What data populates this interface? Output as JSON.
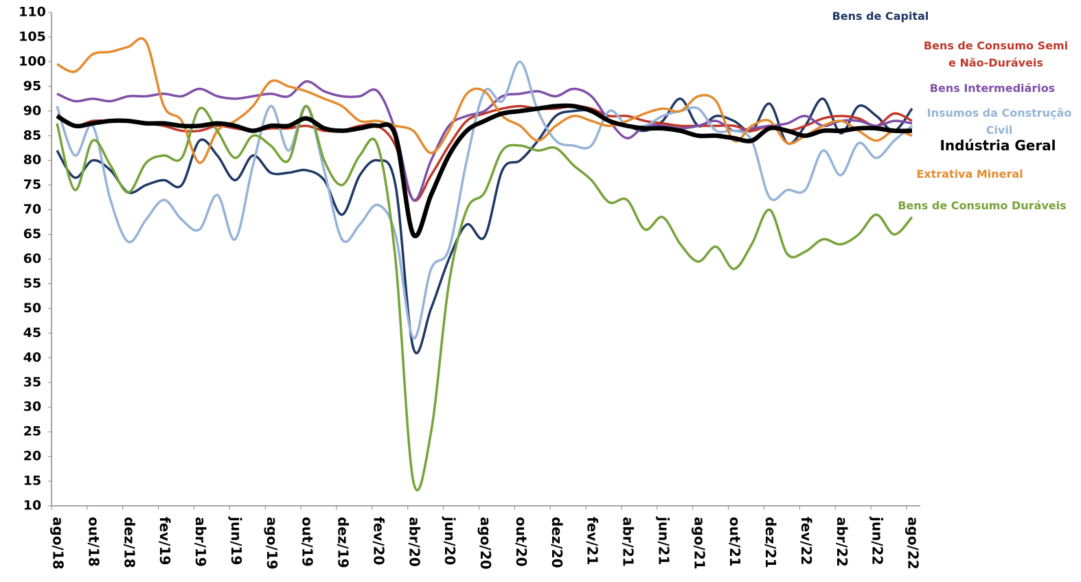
{
  "chart_data": {
    "type": "line",
    "categories": [
      "ago/18",
      null,
      "out/18",
      null,
      "dez/18",
      null,
      "fev/19",
      null,
      "abr/19",
      null,
      "jun/19",
      null,
      "ago/19",
      null,
      "out/19",
      null,
      "dez/19",
      null,
      "fev/20",
      null,
      "abr/20",
      null,
      "jun/20",
      null,
      "ago/20",
      null,
      "out/20",
      null,
      "dez/20",
      null,
      "fev/21",
      null,
      "abr/21",
      null,
      "jun/21",
      null,
      "ago/21",
      null,
      "out/21",
      null,
      "dez/21",
      null,
      "fev/22",
      null,
      "abr/22",
      null,
      "jun/22",
      null,
      "ago/22"
    ],
    "ylim": [
      10,
      110
    ],
    "yticks": [
      10,
      15,
      20,
      25,
      30,
      35,
      40,
      45,
      50,
      55,
      60,
      65,
      70,
      75,
      80,
      85,
      90,
      95,
      100,
      105,
      110
    ],
    "series": [
      {
        "name": "Bens de Capital",
        "color": "#1f3864",
        "values": [
          82,
          76.5,
          80,
          78,
          73.5,
          75,
          76,
          75,
          84,
          81,
          76,
          81,
          77.5,
          77.5,
          78,
          76,
          69,
          77,
          80,
          75,
          42,
          50,
          60,
          67,
          64.5,
          78,
          80,
          84,
          89,
          90,
          90,
          88,
          87,
          86,
          88,
          92.5,
          87,
          89,
          88,
          86,
          91.5,
          83.5,
          87,
          92.5,
          85.5,
          91,
          89,
          86,
          90.5
        ]
      },
      {
        "name": "Bens de Consumo Semi e Não-Duráveis",
        "color": "#c0392b",
        "values": [
          89,
          87,
          88,
          88,
          88,
          87.5,
          87,
          86,
          86,
          87,
          86.5,
          86,
          86.5,
          86.5,
          87,
          86,
          86,
          87,
          87,
          83,
          72,
          77,
          83,
          88,
          89.5,
          90.5,
          91,
          90.5,
          90.5,
          91,
          90.5,
          89,
          89,
          88,
          87.5,
          87,
          87,
          87,
          87,
          86,
          87,
          86,
          87,
          88.5,
          89,
          88.5,
          87,
          89.5,
          88
        ]
      },
      {
        "name": "Bens Intermediários",
        "color": "#7f4fa8",
        "values": [
          93.5,
          92,
          92.5,
          92,
          93,
          93,
          93.5,
          93,
          94.5,
          93,
          92.5,
          93,
          93.5,
          93,
          96,
          94,
          93,
          93,
          94,
          86,
          72,
          80,
          87,
          89,
          90,
          93,
          93.5,
          94,
          93,
          94.5,
          93,
          88,
          84.5,
          87,
          87,
          86.5,
          87,
          88,
          86,
          86.5,
          87,
          87.5,
          89,
          87,
          88,
          88,
          87,
          88,
          87.5
        ]
      },
      {
        "name": "Insumos da Construção Civil",
        "color": "#95b3d7",
        "values": [
          91,
          81,
          87,
          72,
          63.5,
          68,
          72,
          68,
          66,
          73,
          64,
          79,
          91,
          82,
          91,
          78,
          64,
          67,
          71,
          65,
          44,
          58,
          62,
          80,
          94,
          92,
          100,
          90,
          84,
          83,
          83,
          90,
          87,
          87,
          89,
          90,
          90.5,
          86,
          86,
          84,
          72.5,
          74,
          74,
          82,
          77,
          83.5,
          80.5,
          84,
          87
        ]
      },
      {
        "name": "Indústria Geral",
        "color": "#000000",
        "values": [
          89,
          87,
          87.5,
          88,
          88,
          87.5,
          87.5,
          87,
          87,
          87.5,
          87,
          86,
          87,
          87,
          88.5,
          86.5,
          86,
          86.5,
          87,
          85,
          65,
          73,
          81,
          86,
          88,
          89.5,
          90,
          90.5,
          91,
          91,
          90,
          88,
          87,
          86.5,
          86.5,
          86,
          85,
          85,
          84.5,
          84,
          86.5,
          86,
          85,
          86,
          86,
          86.5,
          86.5,
          86,
          86
        ]
      },
      {
        "name": "Extrativa Mineral",
        "color": "#e48b2f",
        "values": [
          99.5,
          98,
          101.5,
          102,
          103,
          104,
          91,
          88,
          79.5,
          86,
          88,
          91,
          96,
          95,
          94,
          92.5,
          91,
          88,
          88,
          87,
          86,
          81.5,
          86,
          93.5,
          94,
          89,
          87,
          84,
          87,
          89,
          88,
          87,
          88,
          89.5,
          90.5,
          90,
          93,
          92,
          84,
          87,
          88,
          83.5,
          85,
          87,
          88,
          86,
          84,
          86,
          85
        ]
      },
      {
        "name": "Bens de Consumo Duráveis",
        "color": "#77a33a",
        "values": [
          87.5,
          74,
          84,
          79,
          73.5,
          79.5,
          81,
          80.5,
          90.5,
          86,
          80.5,
          85,
          83,
          80,
          91,
          80,
          75,
          81,
          83,
          60,
          15,
          25,
          55,
          70,
          73.5,
          82,
          83,
          82,
          82.5,
          79,
          76,
          71.5,
          72,
          66,
          68.5,
          63,
          59.5,
          62.5,
          58,
          63,
          70,
          61,
          61.5,
          64,
          63,
          65,
          69,
          65,
          68.5
        ]
      }
    ]
  }
}
